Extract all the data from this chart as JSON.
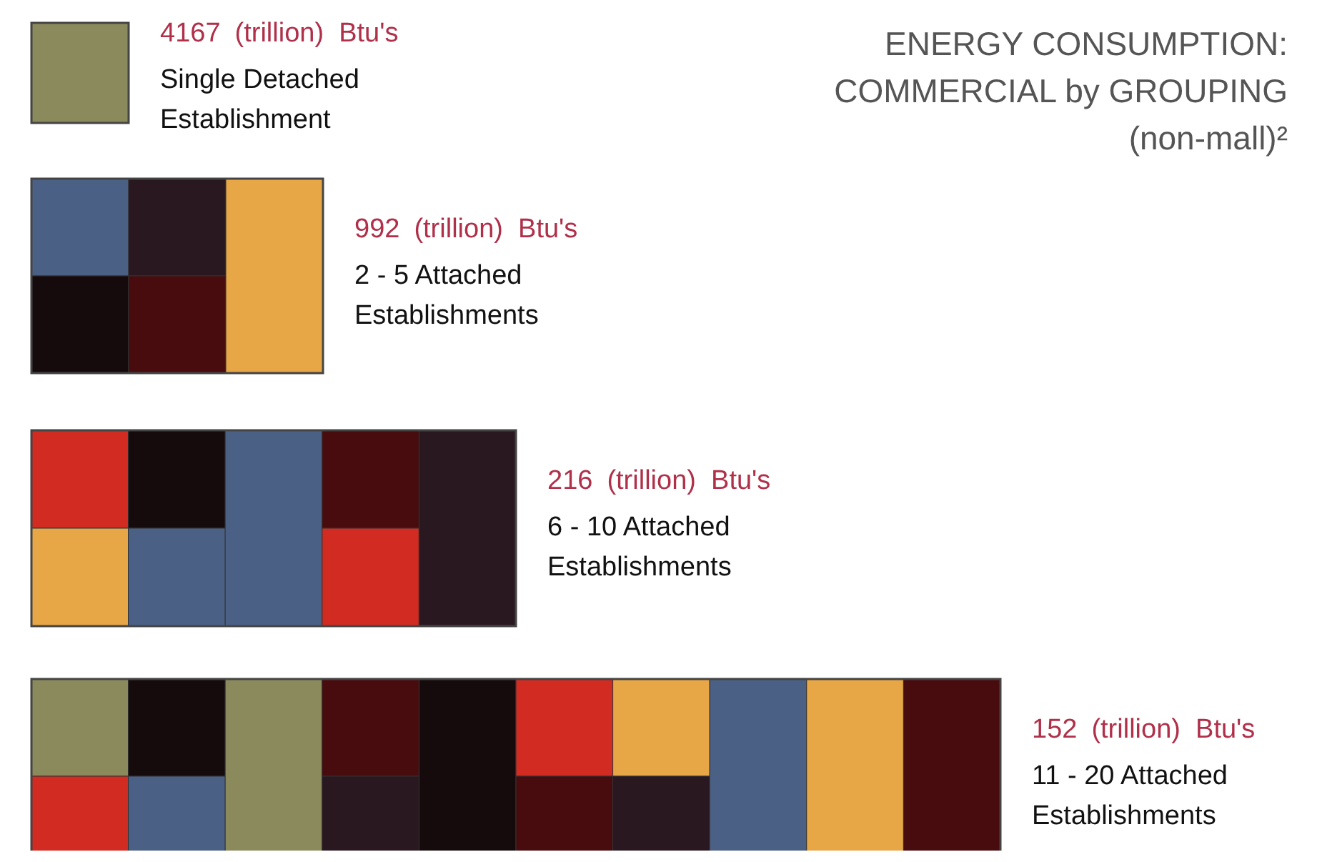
{
  "chart_data": {
    "type": "other",
    "title": "ENERGY CONSUMPTION:\nCOMMERCIAL by GROUPING\n(non-mall)²",
    "ylabel": "(trillion)  Btu's",
    "data_labels": true,
    "categories": [
      "Single Detached\nEstablishment",
      "2 - 5 Attached\nEstablishments",
      "6 - 10 Attached\nEstablishments",
      "11 - 20 Attached\nEstablishments"
    ],
    "values": [
      4167,
      992,
      216,
      152
    ]
  }
}
